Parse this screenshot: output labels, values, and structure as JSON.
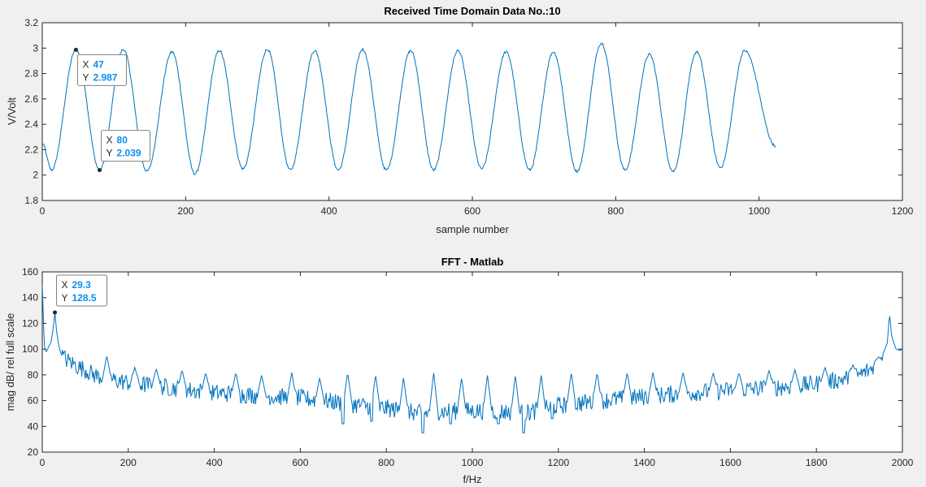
{
  "charts": [
    {
      "id": "top",
      "title": "Received Time Domain Data No.:10",
      "xlabel": "sample number",
      "ylabel": "V/Volt"
    },
    {
      "id": "bottom",
      "title": "FFT -  Matlab",
      "xlabel": "f/Hz",
      "ylabel": "mag dB/ rel full scale"
    }
  ],
  "chart_data": [
    {
      "type": "line",
      "title": "Received Time Domain Data No.:10",
      "xlabel": "sample number",
      "ylabel": "V/Volt",
      "xlim": [
        0,
        1200
      ],
      "ylim": [
        1.8,
        3.2
      ],
      "xticks": [
        0,
        200,
        400,
        600,
        800,
        1000,
        1200
      ],
      "yticks": [
        1.8,
        2,
        2.2,
        2.4,
        2.6,
        2.8,
        3,
        3.2
      ],
      "x_range": [
        0,
        1023
      ],
      "start_value": 2.25,
      "peaks": [
        {
          "x": 47,
          "y": 2.987
        },
        {
          "x": 113,
          "y": 2.99
        },
        {
          "x": 181,
          "y": 2.97
        },
        {
          "x": 247,
          "y": 2.98
        },
        {
          "x": 314,
          "y": 2.99
        },
        {
          "x": 380,
          "y": 2.98
        },
        {
          "x": 447,
          "y": 2.99
        },
        {
          "x": 514,
          "y": 2.98
        },
        {
          "x": 580,
          "y": 2.98
        },
        {
          "x": 647,
          "y": 2.97
        },
        {
          "x": 713,
          "y": 2.97
        },
        {
          "x": 780,
          "y": 3.04
        },
        {
          "x": 847,
          "y": 2.95
        },
        {
          "x": 913,
          "y": 2.97
        },
        {
          "x": 980,
          "y": 2.98
        }
      ],
      "troughs": [
        {
          "x": 13,
          "y": 2.04
        },
        {
          "x": 80,
          "y": 2.039
        },
        {
          "x": 146,
          "y": 2.03
        },
        {
          "x": 213,
          "y": 2.01
        },
        {
          "x": 280,
          "y": 2.05
        },
        {
          "x": 346,
          "y": 2.04
        },
        {
          "x": 413,
          "y": 2.04
        },
        {
          "x": 480,
          "y": 2.04
        },
        {
          "x": 546,
          "y": 2.04
        },
        {
          "x": 613,
          "y": 2.05
        },
        {
          "x": 680,
          "y": 2.04
        },
        {
          "x": 746,
          "y": 2.03
        },
        {
          "x": 813,
          "y": 2.04
        },
        {
          "x": 880,
          "y": 2.03
        },
        {
          "x": 946,
          "y": 2.06
        }
      ],
      "end_value": 2.23,
      "datatips": [
        {
          "x": 47,
          "y": 2.987,
          "x_label": "X",
          "y_label": "Y",
          "x_text": "47",
          "y_text": "2.987"
        },
        {
          "x": 80,
          "y": 2.039,
          "x_label": "X",
          "y_label": "Y",
          "x_text": "80",
          "y_text": "2.039"
        }
      ]
    },
    {
      "type": "line",
      "title": "FFT -  Matlab",
      "xlabel": "f/Hz",
      "ylabel": "mag dB/ rel full scale",
      "xlim": [
        0,
        2000
      ],
      "ylim": [
        20,
        160
      ],
      "xticks": [
        0,
        200,
        400,
        600,
        800,
        1000,
        1200,
        1400,
        1600,
        1800,
        2000
      ],
      "yticks": [
        20,
        40,
        60,
        80,
        100,
        120,
        140,
        160
      ],
      "spectrum_points": [
        [
          0,
          150
        ],
        [
          5,
          100
        ],
        [
          10,
          98
        ],
        [
          15,
          102
        ],
        [
          20,
          105
        ],
        [
          25,
          115
        ],
        [
          29.3,
          128.5
        ],
        [
          33,
          115
        ],
        [
          38,
          103
        ],
        [
          45,
          95
        ],
        [
          55,
          92
        ],
        [
          65,
          90
        ],
        [
          75,
          88
        ],
        [
          85,
          86
        ],
        [
          100,
          84
        ],
        [
          120,
          80
        ],
        [
          150,
          77
        ],
        [
          200,
          74
        ],
        [
          300,
          70
        ],
        [
          400,
          66
        ],
        [
          500,
          64
        ],
        [
          600,
          62
        ],
        [
          700,
          58
        ],
        [
          800,
          54
        ],
        [
          880,
          50
        ],
        [
          950,
          52
        ],
        [
          1000,
          52
        ],
        [
          1050,
          52
        ],
        [
          1120,
          50
        ],
        [
          1200,
          56
        ],
        [
          1300,
          60
        ],
        [
          1400,
          63
        ],
        [
          1500,
          66
        ],
        [
          1600,
          68
        ],
        [
          1700,
          70
        ],
        [
          1800,
          73
        ],
        [
          1850,
          76
        ],
        [
          1900,
          80
        ],
        [
          1930,
          85
        ],
        [
          1950,
          92
        ],
        [
          1965,
          105
        ],
        [
          1970,
          128
        ],
        [
          1975,
          110
        ],
        [
          1985,
          100
        ],
        [
          1995,
          99
        ],
        [
          2000,
          100
        ]
      ],
      "spikes": [
        {
          "x": 150,
          "y": 95
        },
        {
          "x": 215,
          "y": 86
        },
        {
          "x": 265,
          "y": 85
        },
        {
          "x": 325,
          "y": 84
        },
        {
          "x": 380,
          "y": 82
        },
        {
          "x": 450,
          "y": 82
        },
        {
          "x": 510,
          "y": 80
        },
        {
          "x": 580,
          "y": 82
        },
        {
          "x": 645,
          "y": 78
        },
        {
          "x": 710,
          "y": 82
        },
        {
          "x": 775,
          "y": 80
        },
        {
          "x": 840,
          "y": 78
        },
        {
          "x": 910,
          "y": 82
        },
        {
          "x": 975,
          "y": 78
        },
        {
          "x": 1035,
          "y": 80
        },
        {
          "x": 1100,
          "y": 80
        },
        {
          "x": 1160,
          "y": 80
        },
        {
          "x": 1230,
          "y": 82
        },
        {
          "x": 1290,
          "y": 82
        },
        {
          "x": 1360,
          "y": 82
        },
        {
          "x": 1420,
          "y": 82
        },
        {
          "x": 1490,
          "y": 82
        },
        {
          "x": 1560,
          "y": 82
        },
        {
          "x": 1620,
          "y": 82
        },
        {
          "x": 1690,
          "y": 84
        },
        {
          "x": 1750,
          "y": 84
        },
        {
          "x": 1820,
          "y": 86
        },
        {
          "x": 1885,
          "y": 88
        },
        {
          "x": 1945,
          "y": 94
        }
      ],
      "dips": [
        {
          "x": 700,
          "y": 42
        },
        {
          "x": 765,
          "y": 44
        },
        {
          "x": 885,
          "y": 35
        },
        {
          "x": 950,
          "y": 42
        },
        {
          "x": 1060,
          "y": 42
        },
        {
          "x": 1120,
          "y": 35
        },
        {
          "x": 1185,
          "y": 46
        }
      ],
      "datatips": [
        {
          "x": 29.3,
          "y": 128.5,
          "x_label": "X",
          "y_label": "Y",
          "x_text": "29.3",
          "y_text": "128.5"
        }
      ]
    }
  ]
}
